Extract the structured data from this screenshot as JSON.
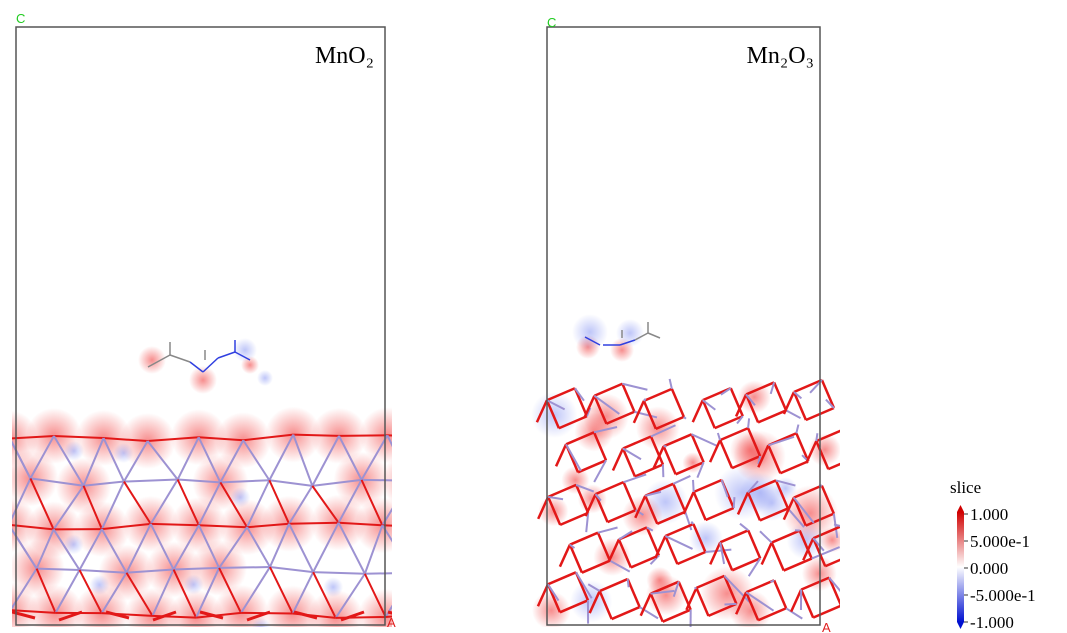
{
  "panels": [
    {
      "title": "MnO₂",
      "axis_top": "C",
      "axis_right": "A"
    },
    {
      "title": "Mn₂O₃",
      "axis_top": "C",
      "axis_right": "A"
    }
  ],
  "legend": {
    "title": "slice",
    "labels": [
      "1.000",
      "5.000e-1",
      "0.000",
      "-5.000e-1",
      "-1.000"
    ]
  }
}
